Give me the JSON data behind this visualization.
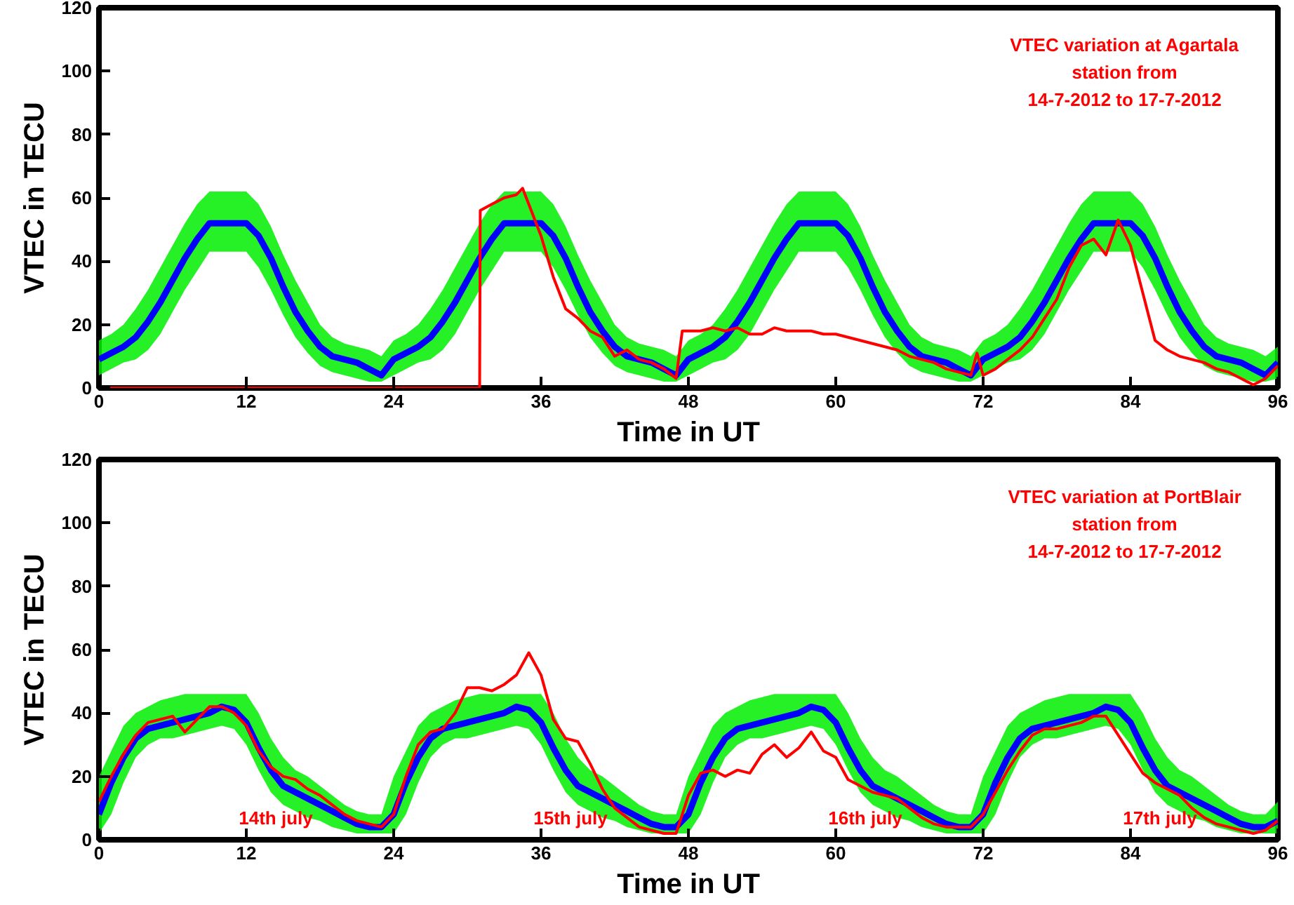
{
  "chart_data": [
    {
      "type": "line",
      "xlabel": "Time in UT",
      "ylabel": "VTEC in TECU",
      "x": [
        0,
        1,
        2,
        3,
        4,
        5,
        6,
        7,
        8,
        9,
        10,
        11,
        12,
        13,
        14,
        15,
        16,
        17,
        18,
        19,
        20,
        21,
        22,
        23,
        24,
        25,
        26,
        27,
        28,
        29,
        30,
        31,
        32,
        33,
        34,
        35,
        36,
        37,
        38,
        39,
        40,
        41,
        42,
        43,
        44,
        45,
        46,
        47,
        48,
        49,
        50,
        51,
        52,
        53,
        54,
        55,
        56,
        57,
        58,
        59,
        60,
        61,
        62,
        63,
        64,
        65,
        66,
        67,
        68,
        69,
        70,
        71,
        72,
        73,
        74,
        75,
        76,
        77,
        78,
        79,
        80,
        81,
        82,
        83,
        84,
        85,
        86,
        87,
        88,
        89,
        90,
        91,
        92,
        93,
        94,
        95,
        96
      ],
      "series": [
        {
          "color": "#0000ff",
          "values": [
            9,
            11,
            13,
            16,
            21,
            27,
            34,
            41,
            47,
            52,
            52,
            52,
            52,
            48,
            41,
            32,
            24,
            18,
            13,
            10,
            9,
            8,
            6,
            4,
            9,
            11,
            13,
            16,
            21,
            27,
            34,
            41,
            47,
            52,
            52,
            52,
            52,
            48,
            41,
            32,
            24,
            18,
            13,
            10,
            9,
            8,
            6,
            4,
            9,
            11,
            13,
            16,
            21,
            27,
            34,
            41,
            47,
            52,
            52,
            52,
            52,
            48,
            41,
            32,
            24,
            18,
            13,
            10,
            9,
            8,
            6,
            4,
            9,
            11,
            13,
            16,
            21,
            27,
            34,
            41,
            47,
            52,
            52,
            52,
            52,
            48,
            41,
            32,
            24,
            18,
            13,
            10,
            9,
            8,
            6,
            4,
            8
          ],
          "upper": [
            15,
            17,
            20,
            25,
            31,
            38,
            45,
            52,
            58,
            62,
            62,
            62,
            62,
            58,
            51,
            42,
            34,
            27,
            20,
            16,
            14,
            13,
            12,
            10,
            15,
            17,
            20,
            25,
            31,
            38,
            45,
            52,
            58,
            62,
            62,
            62,
            62,
            58,
            51,
            42,
            34,
            27,
            20,
            16,
            14,
            13,
            12,
            10,
            15,
            17,
            20,
            25,
            31,
            38,
            45,
            52,
            58,
            62,
            62,
            62,
            62,
            58,
            51,
            42,
            34,
            27,
            20,
            16,
            14,
            13,
            12,
            10,
            15,
            17,
            20,
            25,
            31,
            38,
            45,
            52,
            58,
            62,
            62,
            62,
            62,
            58,
            51,
            42,
            34,
            27,
            20,
            16,
            14,
            13,
            12,
            10,
            13
          ],
          "lower": [
            4,
            6,
            8,
            9,
            12,
            17,
            24,
            31,
            37,
            43,
            43,
            43,
            43,
            38,
            31,
            23,
            16,
            11,
            7,
            5,
            4,
            3,
            2,
            2,
            4,
            6,
            8,
            9,
            12,
            17,
            24,
            31,
            37,
            43,
            43,
            43,
            43,
            38,
            31,
            23,
            16,
            11,
            7,
            5,
            4,
            3,
            2,
            2,
            4,
            6,
            8,
            9,
            12,
            17,
            24,
            31,
            37,
            43,
            43,
            43,
            43,
            38,
            31,
            23,
            16,
            11,
            7,
            5,
            4,
            3,
            2,
            2,
            4,
            6,
            8,
            9,
            12,
            17,
            24,
            31,
            37,
            43,
            43,
            43,
            43,
            38,
            31,
            23,
            16,
            11,
            7,
            5,
            4,
            3,
            2,
            2,
            3
          ]
        },
        {
          "color": "#ff0000",
          "x": [
            0,
            31,
            31.05,
            32,
            33,
            34,
            34.5,
            35,
            36,
            37,
            38,
            39,
            40,
            41,
            42,
            43,
            44,
            45,
            46,
            47,
            47.5,
            48,
            49,
            50,
            51,
            52,
            53,
            54,
            55,
            56,
            57,
            58,
            59,
            60,
            61,
            62,
            63,
            64,
            65,
            66,
            67,
            68,
            69,
            70,
            71,
            71.5,
            72,
            73,
            74,
            75,
            76,
            77,
            78,
            79,
            80,
            81,
            82,
            83,
            84,
            85,
            86,
            87,
            88,
            89,
            90,
            91,
            92,
            93,
            94,
            95,
            96
          ],
          "values": [
            0,
            0,
            56,
            58,
            60,
            61,
            63,
            58,
            48,
            35,
            25,
            22,
            18,
            16,
            10,
            12,
            9,
            8,
            6,
            3,
            18,
            18,
            18,
            19,
            18,
            19,
            17,
            17,
            19,
            18,
            18,
            18,
            17,
            17,
            16,
            15,
            14,
            13,
            12,
            10,
            9,
            8,
            6,
            5,
            4,
            11,
            4,
            6,
            9,
            12,
            16,
            22,
            28,
            38,
            45,
            47,
            42,
            53,
            45,
            30,
            15,
            12,
            10,
            9,
            8,
            6,
            5,
            3,
            1,
            3,
            7
          ]
        }
      ],
      "xlim": [
        0,
        96
      ],
      "ylim": [
        0,
        120
      ],
      "xticks": [
        0,
        12,
        24,
        36,
        48,
        60,
        72,
        84,
        96
      ],
      "yticks": [
        0,
        20,
        40,
        60,
        80,
        100,
        120
      ],
      "annotations": [
        "VTEC variation at Agartala\nstation from\n14-7-2012 to 17-7-2012"
      ]
    },
    {
      "type": "line",
      "xlabel": "Time in UT",
      "ylabel": "VTEC in TECU",
      "x": [
        0,
        1,
        2,
        3,
        4,
        5,
        6,
        7,
        8,
        9,
        10,
        11,
        12,
        13,
        14,
        15,
        16,
        17,
        18,
        19,
        20,
        21,
        22,
        23,
        24,
        25,
        26,
        27,
        28,
        29,
        30,
        31,
        32,
        33,
        34,
        35,
        36,
        37,
        38,
        39,
        40,
        41,
        42,
        43,
        44,
        45,
        46,
        47,
        48,
        49,
        50,
        51,
        52,
        53,
        54,
        55,
        56,
        57,
        58,
        59,
        60,
        61,
        62,
        63,
        64,
        65,
        66,
        67,
        68,
        69,
        70,
        71,
        72,
        73,
        74,
        75,
        76,
        77,
        78,
        79,
        80,
        81,
        82,
        83,
        84,
        85,
        86,
        87,
        88,
        89,
        90,
        91,
        92,
        93,
        94,
        95,
        96
      ],
      "series": [
        {
          "color": "#0000ff",
          "values": [
            8,
            18,
            26,
            32,
            35,
            36,
            37,
            38,
            39,
            40,
            42,
            41,
            37,
            29,
            22,
            17,
            15,
            13,
            11,
            9,
            7,
            5,
            4,
            4,
            8,
            18,
            26,
            32,
            35,
            36,
            37,
            38,
            39,
            40,
            42,
            41,
            37,
            29,
            22,
            17,
            15,
            13,
            11,
            9,
            7,
            5,
            4,
            4,
            8,
            18,
            26,
            32,
            35,
            36,
            37,
            38,
            39,
            40,
            42,
            41,
            37,
            29,
            22,
            17,
            15,
            13,
            11,
            9,
            7,
            5,
            4,
            4,
            8,
            18,
            26,
            32,
            35,
            36,
            37,
            38,
            39,
            40,
            42,
            41,
            37,
            29,
            22,
            17,
            15,
            13,
            11,
            9,
            7,
            5,
            4,
            4,
            6
          ],
          "upper": [
            20,
            28,
            36,
            40,
            42,
            44,
            45,
            46,
            46,
            46,
            46,
            46,
            46,
            40,
            32,
            26,
            22,
            20,
            17,
            14,
            11,
            9,
            8,
            8,
            20,
            28,
            36,
            40,
            42,
            44,
            45,
            46,
            46,
            46,
            46,
            46,
            46,
            40,
            32,
            26,
            22,
            20,
            17,
            14,
            11,
            9,
            8,
            8,
            20,
            28,
            36,
            40,
            42,
            44,
            45,
            46,
            46,
            46,
            46,
            46,
            46,
            40,
            32,
            26,
            22,
            20,
            17,
            14,
            11,
            9,
            8,
            8,
            20,
            28,
            36,
            40,
            42,
            44,
            45,
            46,
            46,
            46,
            46,
            46,
            46,
            40,
            32,
            26,
            22,
            20,
            17,
            14,
            11,
            9,
            8,
            8,
            12
          ],
          "lower": [
            2,
            8,
            18,
            26,
            30,
            32,
            32,
            33,
            34,
            35,
            36,
            35,
            30,
            22,
            15,
            11,
            9,
            7,
            6,
            4,
            3,
            2,
            2,
            2,
            2,
            8,
            18,
            26,
            30,
            32,
            32,
            33,
            34,
            35,
            36,
            35,
            30,
            22,
            15,
            11,
            9,
            7,
            6,
            4,
            3,
            2,
            2,
            2,
            2,
            8,
            18,
            26,
            30,
            32,
            32,
            33,
            34,
            35,
            36,
            35,
            30,
            22,
            15,
            11,
            9,
            7,
            6,
            4,
            3,
            2,
            2,
            2,
            2,
            8,
            18,
            26,
            30,
            32,
            32,
            33,
            34,
            35,
            36,
            35,
            30,
            22,
            15,
            11,
            9,
            7,
            6,
            4,
            3,
            2,
            2,
            2,
            2
          ]
        },
        {
          "color": "#ff0000",
          "values": [
            12,
            20,
            27,
            33,
            37,
            38,
            39,
            34,
            38,
            42,
            42,
            40,
            36,
            28,
            23,
            20,
            19,
            16,
            14,
            11,
            8,
            6,
            5,
            4,
            8,
            20,
            30,
            34,
            35,
            40,
            48,
            48,
            47,
            49,
            52,
            59,
            52,
            38,
            32,
            31,
            24,
            16,
            10,
            7,
            4,
            3,
            2,
            2,
            14,
            21,
            22,
            20,
            22,
            21,
            27,
            30,
            26,
            29,
            34,
            28,
            26,
            19,
            17,
            15,
            14,
            13,
            10,
            7,
            5,
            4,
            4,
            4,
            8,
            15,
            22,
            28,
            33,
            35,
            35,
            36,
            37,
            39,
            39,
            33,
            27,
            21,
            18,
            16,
            14,
            10,
            7,
            5,
            4,
            3,
            2,
            3,
            6
          ]
        }
      ],
      "xlim": [
        0,
        96
      ],
      "ylim": [
        0,
        120
      ],
      "xticks": [
        0,
        12,
        24,
        36,
        48,
        60,
        72,
        84,
        96
      ],
      "yticks": [
        0,
        20,
        40,
        60,
        80,
        100,
        120
      ],
      "annotations": [
        "VTEC variation at PortBlair\nstation from\n14-7-2012 to 17-7-2012",
        "14th july",
        "15th july",
        "16th july",
        "17th july"
      ]
    }
  ]
}
